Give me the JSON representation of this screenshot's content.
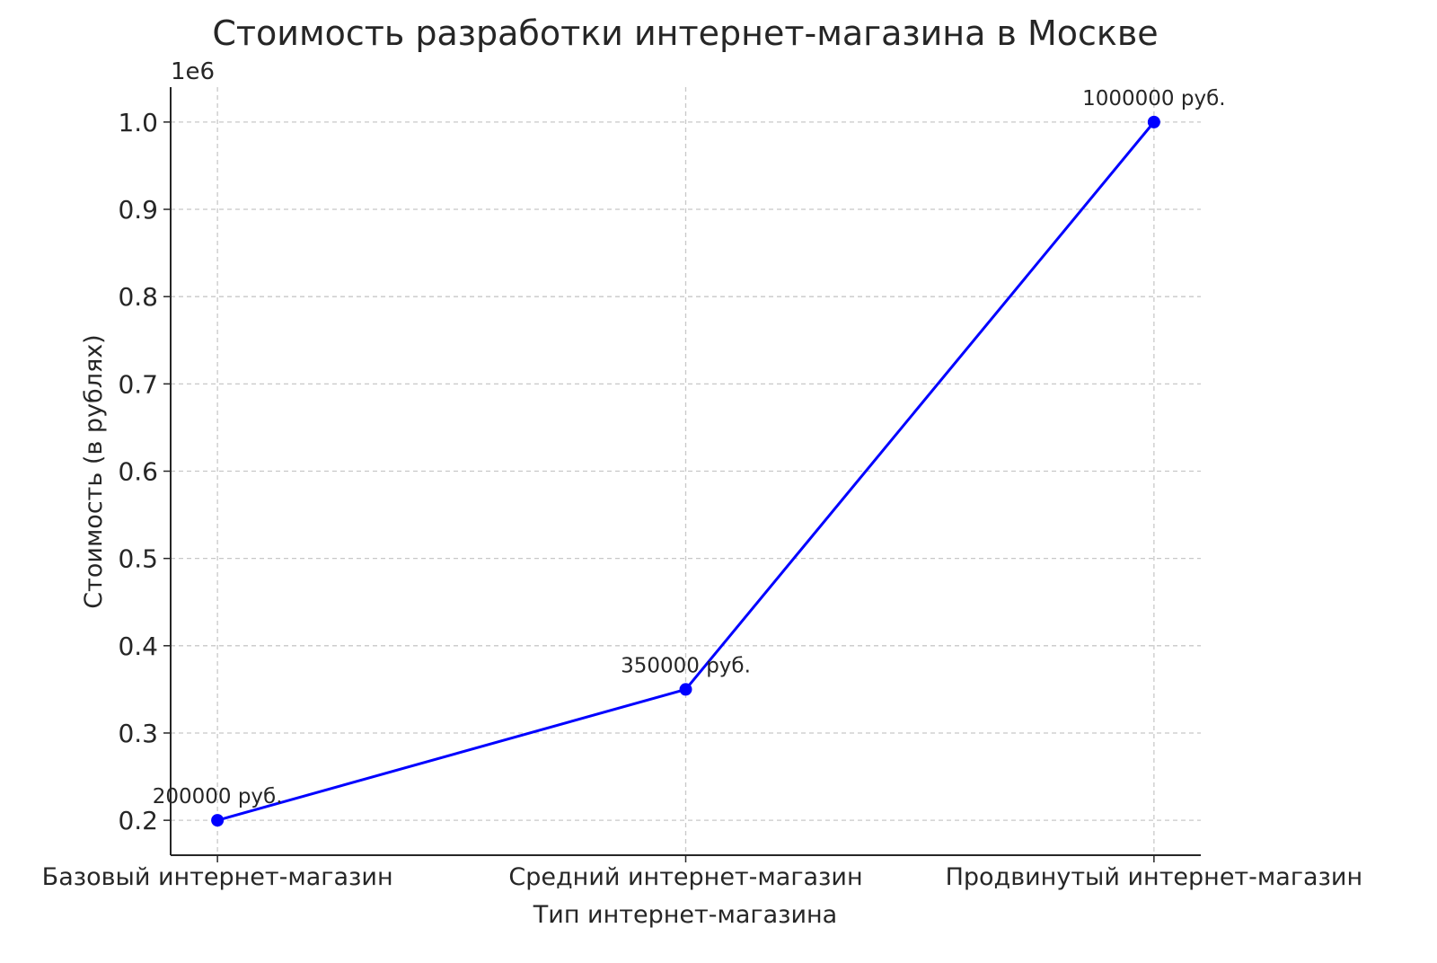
{
  "chart_data": {
    "type": "line",
    "title": "Стоимость разработки интернет-магазина в Москве",
    "xlabel": "Тип интернет-магазина",
    "ylabel": "Стоимость (в рублях)",
    "y_offset_label": "1e6",
    "categories": [
      "Базовый интернет-магазин",
      "Средний интернет-магазин",
      "Продвинутый интернет-магазин"
    ],
    "values": [
      200000,
      350000,
      1000000
    ],
    "data_labels": [
      "200000 руб.",
      "350000 руб.",
      "1000000 руб."
    ],
    "yticks": [
      0.2,
      0.3,
      0.4,
      0.5,
      0.6,
      0.7,
      0.8,
      0.9,
      1.0
    ],
    "ytick_labels": [
      "0.2",
      "0.3",
      "0.4",
      "0.5",
      "0.6",
      "0.7",
      "0.8",
      "0.9",
      "1.0"
    ],
    "ylim": [
      160000,
      1040000
    ],
    "grid": true,
    "line_color": "#0000ff",
    "marker": "circle"
  }
}
